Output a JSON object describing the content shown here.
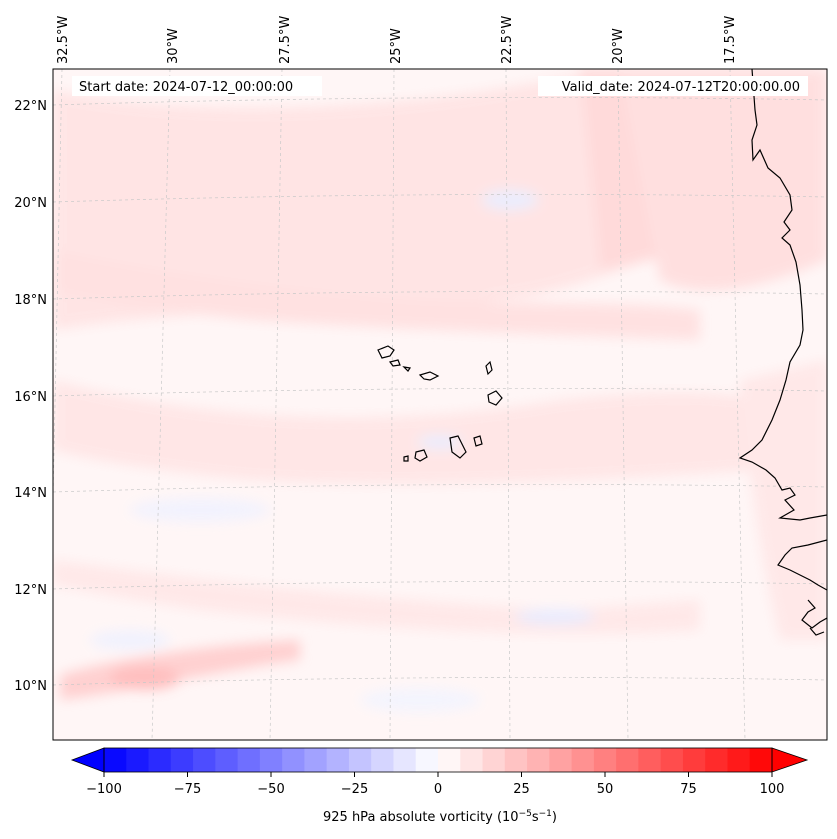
{
  "map": {
    "start_date_label": "Start date: 2024-07-12_00:00:00",
    "valid_date_label": "Valid_date: 2024-07-12T20:00:00.00",
    "lon_labels": [
      "32.5°W",
      "30°W",
      "27.5°W",
      "25°W",
      "22.5°W",
      "20°W",
      "17.5°W"
    ],
    "lat_labels": [
      "22°N",
      "20°N",
      "18°N",
      "16°N",
      "14°N",
      "12°N",
      "10°N"
    ],
    "ocean_color": "#fff6f6",
    "coastline_color": "#000000",
    "gridline_color": "#c8c8c8",
    "features": [
      "West African coastline",
      "Cape Verde islands"
    ]
  },
  "colorbar": {
    "label": "925 hPa absolute vorticity (10",
    "label_exp1": "−5",
    "label_mid": "s",
    "label_exp2": "−1",
    "label_end": ")",
    "ticks": [
      "−100",
      "−75",
      "−50",
      "−25",
      "0",
      "25",
      "50",
      "75",
      "100"
    ],
    "min": -100,
    "max": 100,
    "levels": 30,
    "colormap": "bwr",
    "extend": "both"
  }
}
